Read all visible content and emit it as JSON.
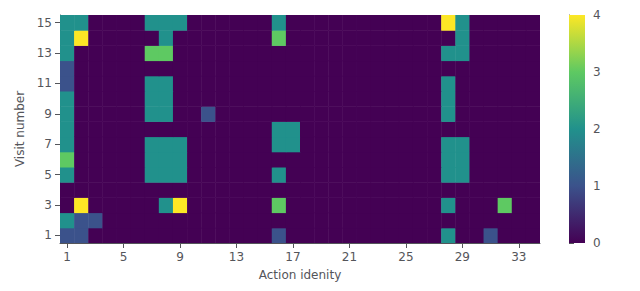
{
  "chart_data": {
    "type": "heatmap",
    "xlabel": "Action idenity",
    "ylabel": "Visit number",
    "xlim": [
      0.5,
      34.5
    ],
    "ylim": [
      0.5,
      15.5
    ],
    "xticks": [
      1,
      5,
      9,
      13,
      17,
      21,
      25,
      29,
      33
    ],
    "yticks": [
      1,
      3,
      5,
      7,
      9,
      11,
      13,
      15
    ],
    "grid": false,
    "color": [
      "#440154",
      "#3b528b",
      "#21918c",
      "#5ec962",
      "#fde725"
    ],
    "colorbar": {
      "range": [
        0,
        4
      ],
      "ticks": [
        0,
        1,
        2,
        3,
        4
      ]
    },
    "matrix": [
      [
        1,
        1,
        0,
        0,
        0,
        0,
        0,
        0,
        0,
        0,
        0,
        0,
        0,
        0,
        0,
        1,
        0,
        0,
        0,
        0,
        0,
        0,
        0,
        0,
        0,
        0,
        0,
        2,
        0,
        0,
        1,
        0,
        0,
        0
      ],
      [
        2,
        1,
        1,
        0,
        0,
        0,
        0,
        0,
        0,
        0,
        0,
        0,
        0,
        0,
        0,
        0,
        0,
        0,
        0,
        0,
        0,
        0,
        0,
        0,
        0,
        0,
        0,
        0,
        0,
        0,
        0,
        0,
        0,
        0
      ],
      [
        0,
        4,
        0,
        0,
        0,
        0,
        0,
        2,
        4,
        0,
        0,
        0,
        0,
        0,
        0,
        3,
        0,
        0,
        0,
        0,
        0,
        0,
        0,
        0,
        0,
        0,
        0,
        2,
        0,
        0,
        0,
        3,
        0,
        0
      ],
      [
        0,
        0,
        0,
        0,
        0,
        0,
        0,
        0,
        0,
        0,
        0,
        0,
        0,
        0,
        0,
        0,
        0,
        0,
        0,
        0,
        0,
        0,
        0,
        0,
        0,
        0,
        0,
        0,
        0,
        0,
        0,
        0,
        0,
        0
      ],
      [
        2,
        0,
        0,
        0,
        0,
        0,
        2,
        2,
        2,
        0,
        0,
        0,
        0,
        0,
        0,
        2,
        0,
        0,
        0,
        0,
        0,
        0,
        0,
        0,
        0,
        0,
        0,
        2,
        2,
        0,
        0,
        0,
        0,
        0
      ],
      [
        3,
        0,
        0,
        0,
        0,
        0,
        2,
        2,
        2,
        0,
        0,
        0,
        0,
        0,
        0,
        0,
        0,
        0,
        0,
        0,
        0,
        0,
        0,
        0,
        0,
        0,
        0,
        2,
        2,
        0,
        0,
        0,
        0,
        0
      ],
      [
        2,
        0,
        0,
        0,
        0,
        0,
        2,
        2,
        2,
        0,
        0,
        0,
        0,
        0,
        0,
        2,
        2,
        0,
        0,
        0,
        0,
        0,
        0,
        0,
        0,
        0,
        0,
        2,
        2,
        0,
        0,
        0,
        0,
        0
      ],
      [
        2,
        0,
        0,
        0,
        0,
        0,
        0,
        0,
        0,
        0,
        0,
        0,
        0,
        0,
        0,
        2,
        2,
        0,
        0,
        0,
        0,
        0,
        0,
        0,
        0,
        0,
        0,
        0,
        0,
        0,
        0,
        0,
        0,
        0
      ],
      [
        2,
        0,
        0,
        0,
        0,
        0,
        2,
        2,
        0,
        0,
        1,
        0,
        0,
        0,
        0,
        0,
        0,
        0,
        0,
        0,
        0,
        0,
        0,
        0,
        0,
        0,
        0,
        2,
        0,
        0,
        0,
        0,
        0,
        0
      ],
      [
        2,
        0,
        0,
        0,
        0,
        0,
        2,
        2,
        0,
        0,
        0,
        0,
        0,
        0,
        0,
        0,
        0,
        0,
        0,
        0,
        0,
        0,
        0,
        0,
        0,
        0,
        0,
        2,
        0,
        0,
        0,
        0,
        0,
        0
      ],
      [
        1,
        0,
        0,
        0,
        0,
        0,
        2,
        2,
        0,
        0,
        0,
        0,
        0,
        0,
        0,
        0,
        0,
        0,
        0,
        0,
        0,
        0,
        0,
        0,
        0,
        0,
        0,
        2,
        0,
        0,
        0,
        0,
        0,
        0
      ],
      [
        1,
        0,
        0,
        0,
        0,
        0,
        0,
        0,
        0,
        0,
        0,
        0,
        0,
        0,
        0,
        0,
        0,
        0,
        0,
        0,
        0,
        0,
        0,
        0,
        0,
        0,
        0,
        0,
        0,
        0,
        0,
        0,
        0,
        0
      ],
      [
        2,
        0,
        0,
        0,
        0,
        0,
        3,
        3,
        0,
        0,
        0,
        0,
        0,
        0,
        0,
        0,
        0,
        0,
        0,
        0,
        0,
        0,
        0,
        0,
        0,
        0,
        0,
        2,
        2,
        0,
        0,
        0,
        0,
        0
      ],
      [
        2,
        4,
        0,
        0,
        0,
        0,
        0,
        2,
        0,
        0,
        0,
        0,
        0,
        0,
        0,
        3,
        0,
        0,
        0,
        0,
        0,
        0,
        0,
        0,
        0,
        0,
        0,
        0,
        2,
        0,
        0,
        0,
        0,
        0
      ],
      [
        2,
        2,
        0,
        0,
        0,
        0,
        2,
        2,
        2,
        0,
        0,
        0,
        0,
        0,
        0,
        2,
        0,
        0,
        0,
        0,
        0,
        0,
        0,
        0,
        0,
        0,
        0,
        4,
        2,
        0,
        0,
        0,
        0,
        0
      ]
    ]
  }
}
